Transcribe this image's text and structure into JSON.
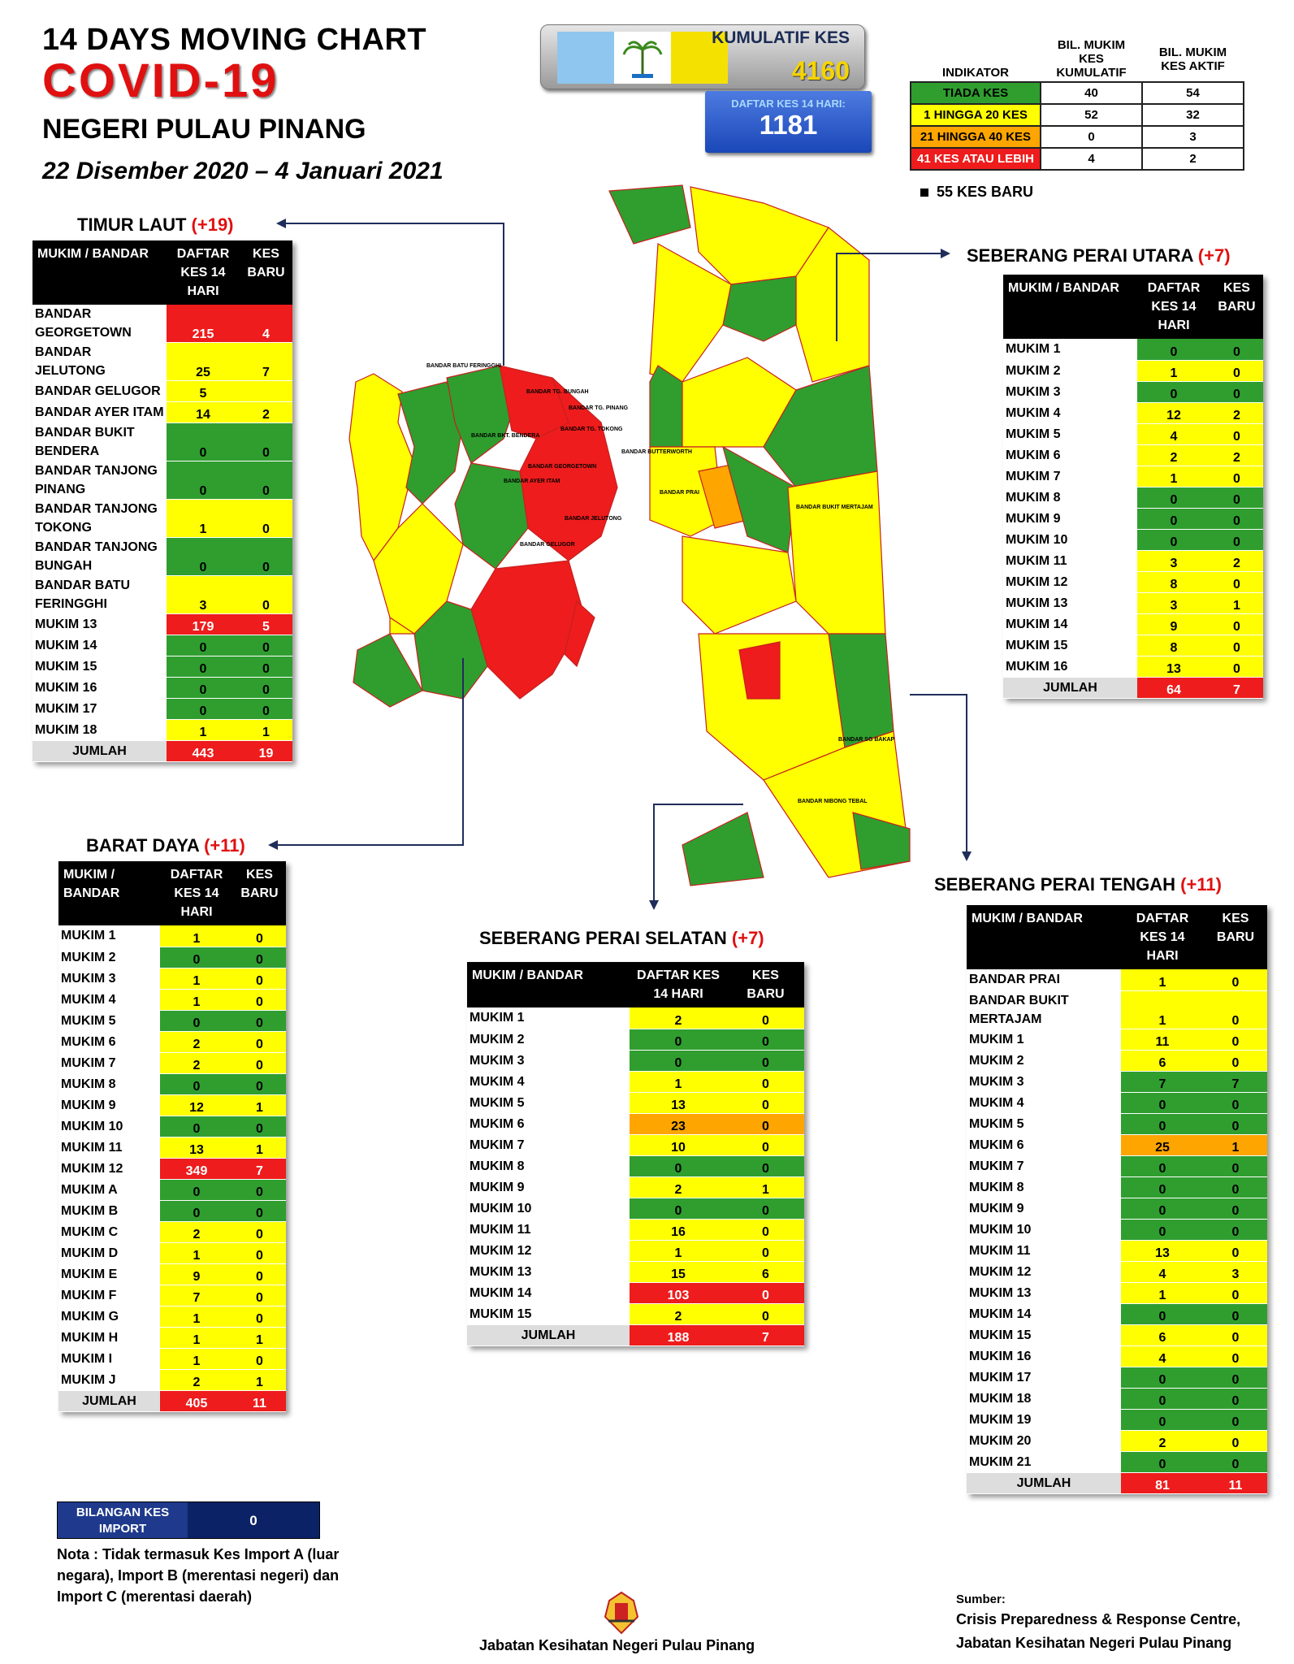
{
  "header": {
    "line1": "14  DAYS MOVING CHART",
    "line2": "COVID-19",
    "line3": "NEGERI PULAU PINANG",
    "line4": "22 Disember 2020 – 4 Januari 2021"
  },
  "kumulatif": {
    "label": "KUMULATIF KES",
    "value": "4160"
  },
  "daftar14": {
    "label": "DAFTAR KES 14 HARI:",
    "value": "1181"
  },
  "indikator": {
    "h1": "INDIKATOR",
    "h2": "BIL. MUKIM KES KUMULATIF",
    "h3": "BIL. MUKIM KES AKTIF",
    "rows": [
      {
        "label": "TIADA KES",
        "kum": "40",
        "aktif": "54",
        "color": "#2f9e2f"
      },
      {
        "label": "1 HINGGA 20 KES",
        "kum": "52",
        "aktif": "32",
        "color": "#ffff00"
      },
      {
        "label": "21 HINGGA 40 KES",
        "kum": "0",
        "aktif": "3",
        "color": "#ffa500"
      },
      {
        "label": "41 KES ATAU LEBIH",
        "kum": "4",
        "aktif": "2",
        "color": "#ee1c1c"
      }
    ]
  },
  "kes_baru": "55 KES BARU",
  "col": {
    "mukim_bandar": "MUKIM / BANDAR",
    "daftar": "DAFTAR KES 14 HARI",
    "baru": "KES BARU"
  },
  "timur_laut": {
    "title": "TIMUR LAUT ",
    "delta": "(+19)",
    "rows": [
      [
        "BANDAR GEORGETOWN",
        "215",
        "4",
        "r",
        "r"
      ],
      [
        "BANDAR JELUTONG",
        "25",
        "7",
        "y",
        "y"
      ],
      [
        "BANDAR GELUGOR",
        "5",
        "",
        "y",
        "y"
      ],
      [
        "BANDAR AYER ITAM",
        "14",
        "2",
        "y",
        "y"
      ],
      [
        "BANDAR BUKIT BENDERA",
        "0",
        "0",
        "g",
        "g"
      ],
      [
        "BANDAR TANJONG PINANG",
        "0",
        "0",
        "g",
        "g"
      ],
      [
        "BANDAR TANJONG TOKONG",
        "1",
        "0",
        "y",
        "y"
      ],
      [
        "BANDAR TANJONG BUNGAH",
        "0",
        "0",
        "g",
        "g"
      ],
      [
        "BANDAR BATU FERINGGHI",
        "3",
        "0",
        "y",
        "y"
      ],
      [
        "MUKIM 13",
        "179",
        "5",
        "r",
        "r"
      ],
      [
        "MUKIM 14",
        "0",
        "0",
        "g",
        "g"
      ],
      [
        "MUKIM 15",
        "0",
        "0",
        "g",
        "g"
      ],
      [
        "MUKIM 16",
        "0",
        "0",
        "g",
        "g"
      ],
      [
        "MUKIM 17",
        "0",
        "0",
        "g",
        "g"
      ],
      [
        "MUKIM 18",
        "1",
        "1",
        "y",
        "y"
      ],
      [
        "JUMLAH",
        "443",
        "19",
        "r",
        "r"
      ]
    ]
  },
  "barat_daya": {
    "title": "BARAT DAYA ",
    "delta": "(+11)",
    "rows": [
      [
        "MUKIM 1",
        "1",
        "0",
        "y",
        "y"
      ],
      [
        "MUKIM 2",
        "0",
        "0",
        "g",
        "g"
      ],
      [
        "MUKIM 3",
        "1",
        "0",
        "y",
        "y"
      ],
      [
        "MUKIM 4",
        "1",
        "0",
        "y",
        "y"
      ],
      [
        "MUKIM 5",
        "0",
        "0",
        "g",
        "g"
      ],
      [
        "MUKIM 6",
        "2",
        "0",
        "y",
        "y"
      ],
      [
        "MUKIM 7",
        "2",
        "0",
        "y",
        "y"
      ],
      [
        "MUKIM 8",
        "0",
        "0",
        "g",
        "g"
      ],
      [
        "MUKIM 9",
        "12",
        "1",
        "y",
        "y"
      ],
      [
        "MUKIM 10",
        "0",
        "0",
        "g",
        "g"
      ],
      [
        "MUKIM 11",
        "13",
        "1",
        "y",
        "y"
      ],
      [
        "MUKIM 12",
        "349",
        "7",
        "r",
        "r"
      ],
      [
        "MUKIM A",
        "0",
        "0",
        "g",
        "g"
      ],
      [
        "MUKIM B",
        "0",
        "0",
        "g",
        "g"
      ],
      [
        "MUKIM C",
        "2",
        "0",
        "y",
        "y"
      ],
      [
        "MUKIM D",
        "1",
        "0",
        "y",
        "y"
      ],
      [
        "MUKIM E",
        "9",
        "0",
        "y",
        "y"
      ],
      [
        "MUKIM F",
        "7",
        "0",
        "y",
        "y"
      ],
      [
        "MUKIM G",
        "1",
        "0",
        "y",
        "y"
      ],
      [
        "MUKIM H",
        "1",
        "1",
        "y",
        "y"
      ],
      [
        "MUKIM I",
        "1",
        "0",
        "y",
        "y"
      ],
      [
        "MUKIM J",
        "2",
        "1",
        "y",
        "y"
      ],
      [
        "JUMLAH",
        "405",
        "11",
        "r",
        "r"
      ]
    ]
  },
  "spu": {
    "title": "SEBERANG PERAI UTARA ",
    "delta": "(+7)",
    "rows": [
      [
        "MUKIM 1",
        "0",
        "0",
        "g",
        "g"
      ],
      [
        "MUKIM 2",
        "1",
        "0",
        "y",
        "y"
      ],
      [
        "MUKIM 3",
        "0",
        "0",
        "g",
        "g"
      ],
      [
        "MUKIM 4",
        "12",
        "2",
        "y",
        "y"
      ],
      [
        "MUKIM 5",
        "4",
        "0",
        "y",
        "y"
      ],
      [
        "MUKIM 6",
        "2",
        "2",
        "y",
        "y"
      ],
      [
        "MUKIM 7",
        "1",
        "0",
        "y",
        "y"
      ],
      [
        "MUKIM 8",
        "0",
        "0",
        "g",
        "g"
      ],
      [
        "MUKIM 9",
        "0",
        "0",
        "g",
        "g"
      ],
      [
        "MUKIM 10",
        "0",
        "0",
        "g",
        "g"
      ],
      [
        "MUKIM 11",
        "3",
        "2",
        "y",
        "y"
      ],
      [
        "MUKIM 12",
        "8",
        "0",
        "y",
        "y"
      ],
      [
        "MUKIM 13",
        "3",
        "1",
        "y",
        "y"
      ],
      [
        "MUKIM 14",
        "9",
        "0",
        "y",
        "y"
      ],
      [
        "MUKIM 15",
        "8",
        "0",
        "y",
        "y"
      ],
      [
        "MUKIM 16",
        "13",
        "0",
        "y",
        "y"
      ],
      [
        "JUMLAH",
        "64",
        "7",
        "r",
        "r"
      ]
    ]
  },
  "sps": {
    "title": "SEBERANG PERAI SELATAN ",
    "delta": "(+7)",
    "rows": [
      [
        "MUKIM 1",
        "2",
        "0",
        "y",
        "y"
      ],
      [
        "MUKIM 2",
        "0",
        "0",
        "g",
        "g"
      ],
      [
        "MUKIM 3",
        "0",
        "0",
        "g",
        "g"
      ],
      [
        "MUKIM 4",
        "1",
        "0",
        "y",
        "y"
      ],
      [
        "MUKIM 5",
        "13",
        "0",
        "y",
        "y"
      ],
      [
        "MUKIM 6",
        "23",
        "0",
        "o",
        "o"
      ],
      [
        "MUKIM 7",
        "10",
        "0",
        "y",
        "y"
      ],
      [
        "MUKIM 8",
        "0",
        "0",
        "g",
        "g"
      ],
      [
        "MUKIM 9",
        "2",
        "1",
        "y",
        "y"
      ],
      [
        "MUKIM 10",
        "0",
        "0",
        "g",
        "g"
      ],
      [
        "MUKIM 11",
        "16",
        "0",
        "y",
        "y"
      ],
      [
        "MUKIM 12",
        "1",
        "0",
        "y",
        "y"
      ],
      [
        "MUKIM 13",
        "15",
        "6",
        "y",
        "y"
      ],
      [
        "MUKIM 14",
        "103",
        "0",
        "r",
        "r"
      ],
      [
        "MUKIM 15",
        "2",
        "0",
        "y",
        "y"
      ],
      [
        "JUMLAH",
        "188",
        "7",
        "r",
        "r"
      ]
    ]
  },
  "spt": {
    "title": "SEBERANG PERAI TENGAH ",
    "delta": "(+11)",
    "rows": [
      [
        "BANDAR PRAI",
        "1",
        "0",
        "y",
        "y"
      ],
      [
        "BANDAR BUKIT MERTAJAM",
        "1",
        "0",
        "y",
        "y"
      ],
      [
        "MUKIM 1",
        "11",
        "0",
        "y",
        "y"
      ],
      [
        "MUKIM 2",
        "6",
        "0",
        "y",
        "y"
      ],
      [
        "MUKIM 3",
        "7",
        "7",
        "g",
        "g"
      ],
      [
        "MUKIM 4",
        "0",
        "0",
        "g",
        "g"
      ],
      [
        "MUKIM 5",
        "0",
        "0",
        "g",
        "g"
      ],
      [
        "MUKIM 6",
        "25",
        "1",
        "o",
        "o"
      ],
      [
        "MUKIM 7",
        "0",
        "0",
        "g",
        "g"
      ],
      [
        "MUKIM 8",
        "0",
        "0",
        "g",
        "g"
      ],
      [
        "MUKIM 9",
        "0",
        "0",
        "g",
        "g"
      ],
      [
        "MUKIM 10",
        "0",
        "0",
        "g",
        "g"
      ],
      [
        "MUKIM 11",
        "13",
        "0",
        "y",
        "y"
      ],
      [
        "MUKIM 12",
        "4",
        "3",
        "y",
        "y"
      ],
      [
        "MUKIM 13",
        "1",
        "0",
        "y",
        "y"
      ],
      [
        "MUKIM 14",
        "0",
        "0",
        "g",
        "g"
      ],
      [
        "MUKIM 15",
        "6",
        "0",
        "y",
        "y"
      ],
      [
        "MUKIM 16",
        "4",
        "0",
        "y",
        "y"
      ],
      [
        "MUKIM 17",
        "0",
        "0",
        "g",
        "g"
      ],
      [
        "MUKIM 18",
        "0",
        "0",
        "g",
        "g"
      ],
      [
        "MUKIM 19",
        "0",
        "0",
        "g",
        "g"
      ],
      [
        "MUKIM 20",
        "2",
        "0",
        "y",
        "y"
      ],
      [
        "MUKIM 21",
        "0",
        "0",
        "g",
        "g"
      ],
      [
        "JUMLAH",
        "81",
        "11",
        "r",
        "r"
      ]
    ]
  },
  "import": {
    "label": "BILANGAN KES IMPORT",
    "value": "0"
  },
  "nota": "Nota : Tidak termasuk Kes Import A (luar negara), Import B (merentasi negeri) dan Import C (merentasi daerah)",
  "footer_center": "Jabatan Kesihatan Negeri Pulau Pinang",
  "footer_right": {
    "l1": "Sumber:",
    "l2": "Crisis Preparedness & Response Centre,",
    "l3": "Jabatan Kesihatan Negeri Pulau Pinang"
  },
  "map_labels": [
    "BANDAR BATU FERINGGHI",
    "BANDAR TG. BUNGAH",
    "BANDAR TG. PINANG",
    "BANDAR TG. TOKONG",
    "BANDAR GEORGETOWN",
    "BANDAR AYER ITAM",
    "BANDAR JELUTONG",
    "BANDAR GELUGOR",
    "BANDAR BKT. BENDERA",
    "BANDAR BUTTERWORTH",
    "BANDAR PRAI",
    "BANDAR BUKIT MERTAJAM",
    "BANDAR SG BAKAP",
    "BANDAR NIBONG TEBAL"
  ]
}
